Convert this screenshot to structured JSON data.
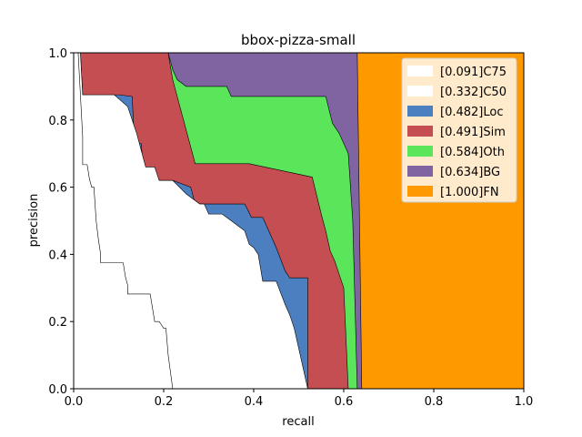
{
  "chart_data": {
    "type": "area",
    "title": "bbox-pizza-small",
    "xlabel": "recall",
    "ylabel": "precision",
    "xlim": [
      0.0,
      1.0
    ],
    "ylim": [
      0.0,
      1.0
    ],
    "xticks": [
      "0.0",
      "0.2",
      "0.4",
      "0.6",
      "0.8",
      "1.0"
    ],
    "yticks": [
      "0.0",
      "0.2",
      "0.4",
      "0.6",
      "0.8",
      "1.0"
    ],
    "grid": false,
    "legend_position": "top-right",
    "series": [
      {
        "name": "[0.091]C75",
        "color": "#ffffff",
        "points": [
          [
            0.0,
            1.0
          ],
          [
            0.01,
            1.0
          ],
          [
            0.015,
            0.875
          ],
          [
            0.02,
            0.75
          ],
          [
            0.02,
            0.667
          ],
          [
            0.03,
            0.667
          ],
          [
            0.035,
            0.625
          ],
          [
            0.04,
            0.6
          ],
          [
            0.045,
            0.6
          ],
          [
            0.05,
            0.5
          ],
          [
            0.055,
            0.444
          ],
          [
            0.06,
            0.4
          ],
          [
            0.06,
            0.375
          ],
          [
            0.11,
            0.375
          ],
          [
            0.115,
            0.333
          ],
          [
            0.12,
            0.308
          ],
          [
            0.12,
            0.282
          ],
          [
            0.17,
            0.282
          ],
          [
            0.18,
            0.2
          ],
          [
            0.19,
            0.2
          ],
          [
            0.195,
            0.19
          ],
          [
            0.2,
            0.18
          ],
          [
            0.205,
            0.18
          ],
          [
            0.21,
            0.1
          ],
          [
            0.22,
            0.0
          ]
        ]
      },
      {
        "name": "[0.332]C50",
        "color": "#ffffff",
        "points": [
          [
            0.0,
            1.0
          ],
          [
            0.015,
            1.0
          ],
          [
            0.02,
            0.875
          ],
          [
            0.09,
            0.875
          ],
          [
            0.12,
            0.84
          ],
          [
            0.14,
            0.76
          ],
          [
            0.16,
            0.66
          ],
          [
            0.18,
            0.66
          ],
          [
            0.19,
            0.62
          ],
          [
            0.22,
            0.62
          ],
          [
            0.25,
            0.58
          ],
          [
            0.28,
            0.55
          ],
          [
            0.29,
            0.55
          ],
          [
            0.3,
            0.52
          ],
          [
            0.33,
            0.52
          ],
          [
            0.35,
            0.5
          ],
          [
            0.38,
            0.47
          ],
          [
            0.39,
            0.43
          ],
          [
            0.4,
            0.42
          ],
          [
            0.41,
            0.4
          ],
          [
            0.42,
            0.32
          ],
          [
            0.45,
            0.32
          ],
          [
            0.47,
            0.25
          ],
          [
            0.48,
            0.22
          ],
          [
            0.49,
            0.18
          ],
          [
            0.5,
            0.12
          ],
          [
            0.51,
            0.06
          ],
          [
            0.52,
            0.0
          ]
        ]
      },
      {
        "name": "[0.482]Loc",
        "color": "#4c7fc0",
        "points": [
          [
            0.0,
            1.0
          ],
          [
            0.015,
            1.0
          ],
          [
            0.02,
            0.875
          ],
          [
            0.09,
            0.875
          ],
          [
            0.1,
            0.875
          ],
          [
            0.13,
            0.87
          ],
          [
            0.135,
            0.73
          ],
          [
            0.15,
            0.73
          ],
          [
            0.155,
            0.65
          ],
          [
            0.18,
            0.65
          ],
          [
            0.19,
            0.62
          ],
          [
            0.22,
            0.62
          ],
          [
            0.26,
            0.6
          ],
          [
            0.27,
            0.55
          ],
          [
            0.38,
            0.55
          ],
          [
            0.395,
            0.51
          ],
          [
            0.42,
            0.51
          ],
          [
            0.45,
            0.42
          ],
          [
            0.47,
            0.35
          ],
          [
            0.48,
            0.33
          ],
          [
            0.52,
            0.33
          ],
          [
            0.52,
            0.0
          ]
        ]
      },
      {
        "name": "[0.491]Sim",
        "color": "#c44e52",
        "points": [
          [
            0.0,
            1.0
          ],
          [
            0.21,
            1.0
          ],
          [
            0.22,
            0.92
          ],
          [
            0.27,
            0.67
          ],
          [
            0.38,
            0.67
          ],
          [
            0.39,
            0.67
          ],
          [
            0.53,
            0.63
          ],
          [
            0.55,
            0.52
          ],
          [
            0.56,
            0.47
          ],
          [
            0.57,
            0.41
          ],
          [
            0.58,
            0.38
          ],
          [
            0.59,
            0.34
          ],
          [
            0.6,
            0.3
          ],
          [
            0.61,
            0.0
          ]
        ]
      },
      {
        "name": "[0.584]Oth",
        "color": "#5ae55a",
        "points": [
          [
            0.0,
            1.0
          ],
          [
            0.21,
            1.0
          ],
          [
            0.22,
            0.95
          ],
          [
            0.23,
            0.92
          ],
          [
            0.25,
            0.9
          ],
          [
            0.31,
            0.9
          ],
          [
            0.34,
            0.9
          ],
          [
            0.35,
            0.87
          ],
          [
            0.56,
            0.87
          ],
          [
            0.575,
            0.79
          ],
          [
            0.59,
            0.76
          ],
          [
            0.61,
            0.7
          ],
          [
            0.62,
            0.5
          ],
          [
            0.63,
            0.0
          ]
        ]
      },
      {
        "name": "[0.634]BG",
        "color": "#8064a2",
        "points": [
          [
            0.0,
            1.0
          ],
          [
            0.63,
            1.0
          ],
          [
            0.635,
            0.5
          ],
          [
            0.64,
            0.0
          ]
        ]
      },
      {
        "name": "[1.000]FN",
        "color": "#ff9900",
        "points": [
          [
            0.0,
            1.0
          ],
          [
            1.0,
            1.0
          ],
          [
            1.0,
            0.0
          ]
        ]
      }
    ]
  }
}
